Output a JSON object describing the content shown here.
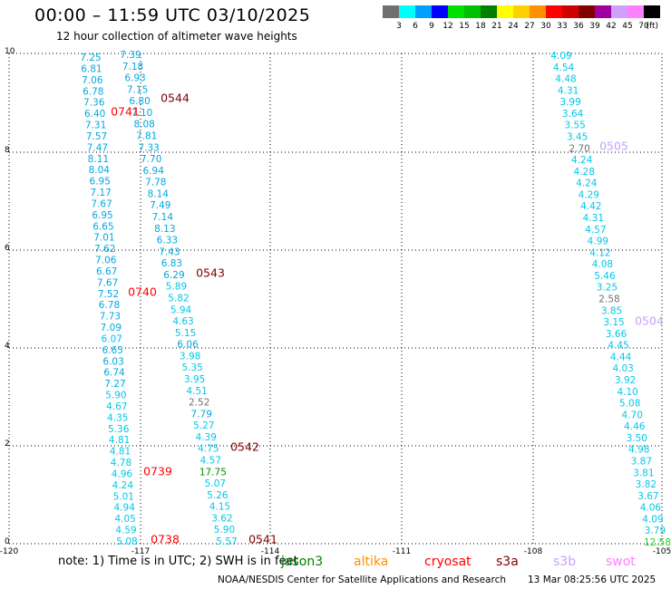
{
  "title": "00:00  –  11:59 UTC 03/10/2025",
  "subtitle": "12 hour collection of altimeter wave heights",
  "legend": {
    "swatches": [
      {
        "label": "3",
        "color": "#707070"
      },
      {
        "label": "6",
        "color": "#00ffff"
      },
      {
        "label": "9",
        "color": "#00a0ff"
      },
      {
        "label": "12",
        "color": "#0000ff"
      },
      {
        "label": "15",
        "color": "#00e000"
      },
      {
        "label": "18",
        "color": "#00c000"
      },
      {
        "label": "21",
        "color": "#008000"
      },
      {
        "label": "24",
        "color": "#ffff00"
      },
      {
        "label": "27",
        "color": "#ffd000"
      },
      {
        "label": "30",
        "color": "#ff9000"
      },
      {
        "label": "33",
        "color": "#ff0000"
      },
      {
        "label": "36",
        "color": "#d00000"
      },
      {
        "label": "39",
        "color": "#800000"
      },
      {
        "label": "42",
        "color": "#a000a0"
      },
      {
        "label": "45",
        "color": "#d0a0ff"
      },
      {
        "label": "70",
        "color": "#ff80ff"
      },
      {
        "label": "",
        "color": "#000000"
      }
    ],
    "unit": "(ft)"
  },
  "axes": {
    "x_ticks": [
      "-120",
      "-117",
      "-114",
      "-111",
      "-108",
      "-105"
    ],
    "y_ticks": [
      "0",
      "2",
      "4",
      "6",
      "8",
      "10"
    ]
  },
  "tracks": [
    {
      "values": [
        "7.25",
        "6.81",
        "7.06",
        "6.78",
        "7.36",
        "6.40",
        "7.31",
        "7.57",
        "7.47",
        "8.11",
        "8.04",
        "6.95",
        "7.17",
        "7.67",
        "6.95",
        "6.65",
        "7.01",
        "7.62",
        "7.06",
        "6.67",
        "7.67",
        "7.52",
        "6.78",
        "7.73",
        "7.09",
        "6.07",
        "6.65",
        "6.03",
        "6.74",
        "7.27",
        "5.90",
        "4.67",
        "4.35",
        "5.36",
        "4.81",
        "4.81",
        "4.78",
        "4.96",
        "4.24",
        "5.01",
        "4.94",
        "4.05",
        "4.59",
        "5.08"
      ],
      "colors": {
        "6.07": "#00c0ff"
      }
    },
    {
      "values": [
        "7.39",
        "7.18",
        "6.93",
        "7.15",
        "6.80",
        "7.10",
        "8.08",
        "7.81",
        "7.33",
        "7.70",
        "6.94",
        "7.78",
        "8.14",
        "7.49",
        "7.14",
        "8.13",
        "6.33",
        "7.43",
        "6.83",
        "6.29",
        "5.89",
        "5.82",
        "5.94",
        "4.63",
        "5.15",
        "6.06",
        "3.98",
        "5.35",
        "3.95",
        "4.51",
        "2.52",
        "7.79",
        "5.27",
        "4.39",
        "4.75",
        "4.57",
        "17.75",
        "5.07",
        "5.26",
        "4.15",
        "3.62",
        "5.90",
        "5.57"
      ]
    },
    {
      "values": [
        "4.09",
        "4.54",
        "4.48",
        "4.31",
        "3.99",
        "3.64",
        "3.55",
        "3.45",
        "2.70",
        "4.24",
        "4.28",
        "4.24",
        "4.29",
        "4.42",
        "4.31",
        "4.57",
        "4.99",
        "4.12",
        "4.08",
        "5.46",
        "3.25",
        "2.58",
        "3.85",
        "3.15",
        "3.66",
        "4.45",
        "4.44",
        "4.03",
        "3.92",
        "4.10",
        "5.08",
        "4.70",
        "4.46",
        "3.50",
        "4.98",
        "3.87",
        "3.81",
        "3.82",
        "3.67",
        "4.06",
        "4.09",
        "3.79",
        "12.58"
      ]
    }
  ],
  "time_labels": [
    {
      "text": "0544",
      "color": "#800000"
    },
    {
      "text": "0741",
      "color": "#ff0000"
    },
    {
      "text": "0543",
      "color": "#800000"
    },
    {
      "text": "0740",
      "color": "#ff0000"
    },
    {
      "text": "0542",
      "color": "#800000"
    },
    {
      "text": "0739",
      "color": "#ff0000"
    },
    {
      "text": "0738",
      "color": "#ff0000"
    },
    {
      "text": "0541",
      "color": "#800000"
    },
    {
      "text": "0505",
      "color": "#c8a0ff"
    },
    {
      "text": "0504",
      "color": "#c8a0ff"
    }
  ],
  "footer": {
    "note": "note:  1) Time is in UTC;  2) SWH is in feet",
    "satellites": [
      {
        "name": "jason3",
        "color": "#008000"
      },
      {
        "name": "altika",
        "color": "#ff9000"
      },
      {
        "name": "cryosat",
        "color": "#ff0000"
      },
      {
        "name": "s3a",
        "color": "#800000"
      },
      {
        "name": "s3b",
        "color": "#c8a0ff"
      },
      {
        "name": "swot",
        "color": "#ff80ff"
      }
    ],
    "credit": "NOAA/NESDIS Center for Satellite Applications and Research",
    "timestamp": "13 Mar 08:25:56 UTC 2025"
  }
}
